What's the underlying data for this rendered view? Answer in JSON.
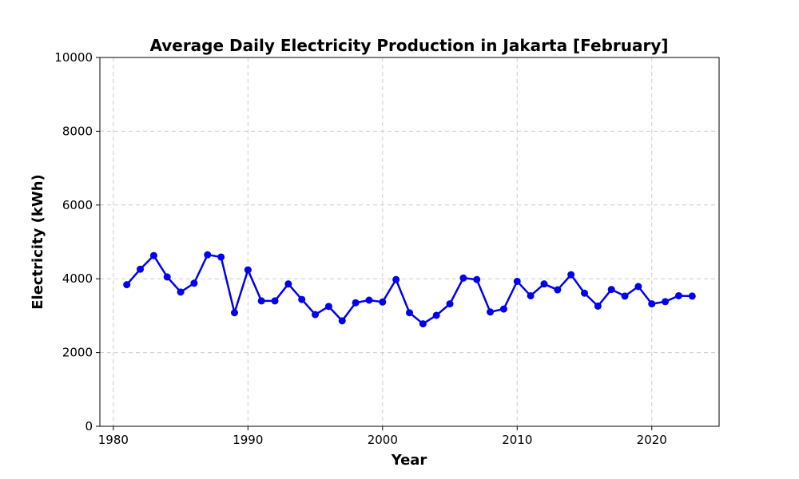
{
  "chart_data": {
    "type": "line",
    "title": "Average Daily Electricity Production in Jakarta [February]",
    "xlabel": "Year",
    "ylabel": "Electricity (kWh)",
    "xlim": [
      1979,
      2025
    ],
    "ylim": [
      0,
      10000
    ],
    "xticks": [
      1980,
      1990,
      2000,
      2010,
      2020
    ],
    "yticks": [
      0,
      2000,
      4000,
      6000,
      8000,
      10000
    ],
    "grid": true,
    "series": [
      {
        "color": "#0000ee",
        "marker": "circle",
        "x": [
          1981,
          1982,
          1983,
          1984,
          1985,
          1986,
          1987,
          1988,
          1989,
          1990,
          1991,
          1992,
          1993,
          1994,
          1995,
          1996,
          1997,
          1998,
          1999,
          2000,
          2001,
          2002,
          2003,
          2004,
          2005,
          2006,
          2007,
          2008,
          2009,
          2010,
          2011,
          2012,
          2013,
          2014,
          2015,
          2016,
          2017,
          2018,
          2019,
          2020,
          2021,
          2022,
          2023
        ],
        "y": [
          3840,
          4260,
          4630,
          4050,
          3640,
          3880,
          4650,
          4590,
          3080,
          4240,
          3400,
          3400,
          3860,
          3440,
          3030,
          3250,
          2860,
          3350,
          3420,
          3370,
          3980,
          3080,
          2780,
          3010,
          3320,
          4020,
          3980,
          3100,
          3180,
          3930,
          3540,
          3860,
          3700,
          4110,
          3610,
          3260,
          3710,
          3530,
          3790,
          3320,
          3380,
          3540,
          3530
        ]
      }
    ]
  }
}
